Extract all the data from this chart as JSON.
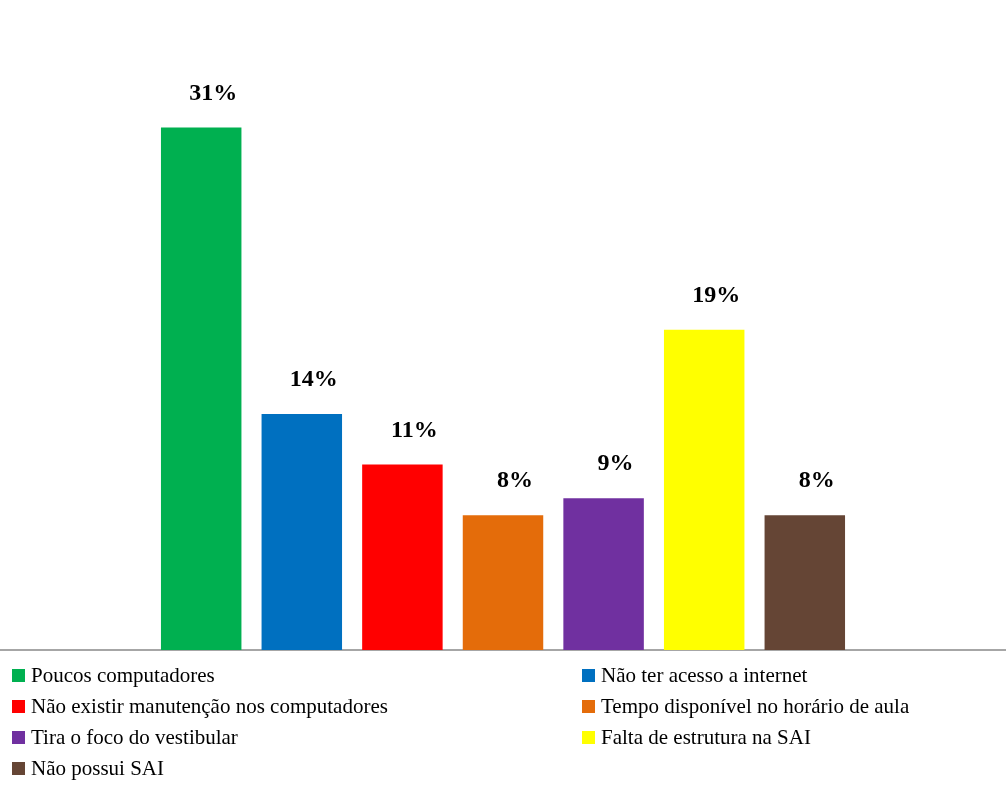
{
  "chart_data": {
    "type": "bar",
    "categories": [
      null
    ],
    "legend": "bottom",
    "series": [
      {
        "name": "Poucos computadores",
        "color": "#00b050",
        "values": [
          31
        ],
        "value_labels": [
          "31%"
        ]
      },
      {
        "name": "Não ter acesso a internet",
        "color": "#0070c0",
        "values": [
          14
        ],
        "value_labels": [
          "14%"
        ]
      },
      {
        "name": "Não existir manutenção nos computadores",
        "color": "#ff0000",
        "values": [
          11
        ],
        "value_labels": [
          "11%"
        ]
      },
      {
        "name": "Tempo disponível no horário de aula",
        "color": "#e46c0a",
        "values": [
          8
        ],
        "value_labels": [
          "8%"
        ]
      },
      {
        "name": "Tira o foco do vestibular",
        "color": "#7030a0",
        "values": [
          9
        ],
        "value_labels": [
          "9%"
        ]
      },
      {
        "name": "Falta de estrutura na SAI",
        "color": "#ffff00",
        "values": [
          19
        ],
        "value_labels": [
          "19%"
        ]
      },
      {
        "name": "Não possui SAI",
        "color": "#654535",
        "values": [
          8
        ],
        "value_labels": [
          "8%"
        ]
      }
    ]
  }
}
